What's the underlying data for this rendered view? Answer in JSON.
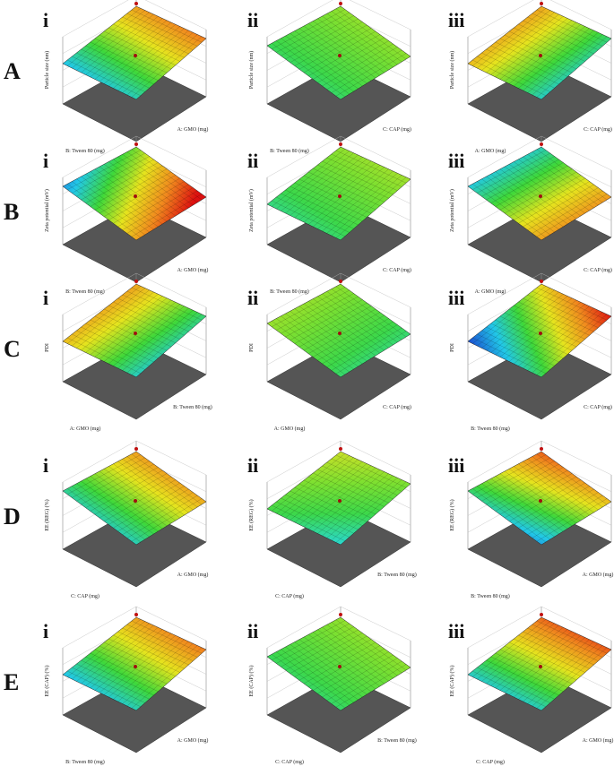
{
  "rows": [
    {
      "label": "A",
      "panels": [
        {
          "label": "i",
          "z_axis": "Particle size (nm)",
          "left_axis": "B: Tween 80 (mg)",
          "right_axis": "A: GMO (mg)"
        },
        {
          "label": "ii",
          "z_axis": "Particle size (nm)",
          "left_axis": "B: Tween 80 (mg)",
          "right_axis": "C: CAP (mg)"
        },
        {
          "label": "iii",
          "z_axis": "Particle size (nm)",
          "left_axis": "A: GMO (mg)",
          "right_axis": "C: CAP (mg)"
        }
      ]
    },
    {
      "label": "B",
      "panels": [
        {
          "label": "i",
          "z_axis": "Zeta potential (mV)",
          "left_axis": "B: Tween 80 (mg)",
          "right_axis": "A: GMO (mg)"
        },
        {
          "label": "ii",
          "z_axis": "Zeta potential (mV)",
          "left_axis": "B: Tween 80 (mg)",
          "right_axis": "C: CAP (mg)"
        },
        {
          "label": "iii",
          "z_axis": "Zeta potential (mV)",
          "left_axis": "A: GMO (mg)",
          "right_axis": "C: CAP (mg)"
        }
      ]
    },
    {
      "label": "C",
      "panels": [
        {
          "label": "i",
          "z_axis": "PDI",
          "left_axis": "A: GMO (mg)",
          "right_axis": "B: Tween 80 (mg)"
        },
        {
          "label": "ii",
          "z_axis": "PDI",
          "left_axis": "A: GMO (mg)",
          "right_axis": "C: CAP (mg)"
        },
        {
          "label": "iii",
          "z_axis": "PDI",
          "left_axis": "B: Tween 80 (mg)",
          "right_axis": "C: CAP (mg)"
        }
      ]
    },
    {
      "label": "D",
      "panels": [
        {
          "label": "i",
          "z_axis": "EE (REG) (%)",
          "left_axis": "C: CAP (mg)",
          "right_axis": "A: GMO (mg)"
        },
        {
          "label": "ii",
          "z_axis": "EE (REG) (%)",
          "left_axis": "C: CAP (mg)",
          "right_axis": "B: Tween 80 (mg)"
        },
        {
          "label": "iii",
          "z_axis": "EE (REG) (%)",
          "left_axis": "B: Tween 80 (mg)",
          "right_axis": "A: GMO (mg)"
        }
      ]
    },
    {
      "label": "E",
      "panels": [
        {
          "label": "i",
          "z_axis": "EE (CAP) (%)",
          "left_axis": "B: Tween 80 (mg)",
          "right_axis": "A: GMO (mg)"
        },
        {
          "label": "ii",
          "z_axis": "EE (CAP) (%)",
          "left_axis": "C: CAP (mg)",
          "right_axis": "B: Tween 80 (mg)"
        },
        {
          "label": "iii",
          "z_axis": "EE (CAP) (%)",
          "left_axis": "C: CAP (mg)",
          "right_axis": "A: GMO (mg)"
        }
      ]
    }
  ]
}
